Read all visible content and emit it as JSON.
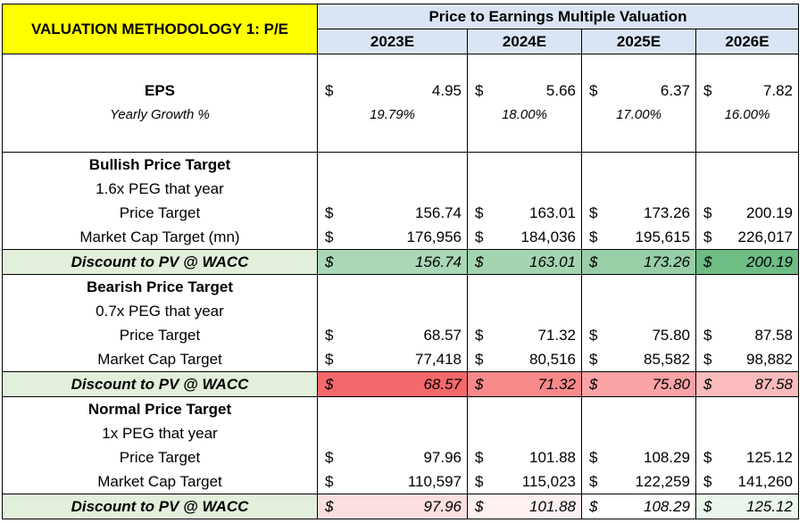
{
  "title": "VALUATION METHODOLOGY 1: P/E",
  "header": "Price to Earnings Multiple Valuation",
  "years": [
    "2023E",
    "2024E",
    "2025E",
    "2026E"
  ],
  "currency": "$",
  "eps": {
    "label": "EPS",
    "values": [
      "4.95",
      "5.66",
      "6.37",
      "7.82"
    ],
    "growth_label": "Yearly Growth %",
    "growth": [
      "19.79%",
      "18.00%",
      "17.00%",
      "16.00%"
    ]
  },
  "bullish": {
    "title": "Bullish Price Target",
    "peg": "1.6x PEG that year",
    "pt_label": "Price Target",
    "pt": [
      "156.74",
      "163.01",
      "173.26",
      "200.19"
    ],
    "mc_label": "Market Cap Target (mn)",
    "mc": [
      "176,956",
      "184,036",
      "195,615",
      "226,017"
    ],
    "disc_label": "Discount to PV @ WACC",
    "disc": [
      "156.74",
      "163.01",
      "173.26",
      "200.19"
    ]
  },
  "bearish": {
    "title": "Bearish Price Target",
    "peg": "0.7x PEG that year",
    "pt_label": "Price Target",
    "pt": [
      "68.57",
      "71.32",
      "75.80",
      "87.58"
    ],
    "mc_label": "Market Cap Target",
    "mc": [
      "77,418",
      "80,516",
      "85,582",
      "98,882"
    ],
    "disc_label": "Discount to PV @ WACC",
    "disc": [
      "68.57",
      "71.32",
      "75.80",
      "87.58"
    ]
  },
  "normal": {
    "title": "Normal Price Target",
    "peg": "1x PEG that year",
    "pt_label": "Price Target",
    "pt": [
      "97.96",
      "101.88",
      "108.29",
      "125.12"
    ],
    "mc_label": "Market Cap Target",
    "mc": [
      "110,597",
      "115,023",
      "122,259",
      "141,260"
    ],
    "disc_label": "Discount to PV @ WACC",
    "disc": [
      "97.96",
      "101.88",
      "108.29",
      "125.12"
    ]
  },
  "colors": {
    "title_bg": "#ffff00",
    "header_bg": "#d9e5f4",
    "discount_label_bg": "#e2efda",
    "bullish_fill": [
      "#aad7b5",
      "#a5d4b0",
      "#98cfa7",
      "#6dbd85"
    ],
    "bearish_fill": [
      "#f4696b",
      "#f8898b",
      "#f9a3a5",
      "#fbbbbd"
    ],
    "normal_fill": [
      "#fcdedf",
      "#fdf1f2",
      "#ffffff",
      "#eaf5ec"
    ]
  }
}
